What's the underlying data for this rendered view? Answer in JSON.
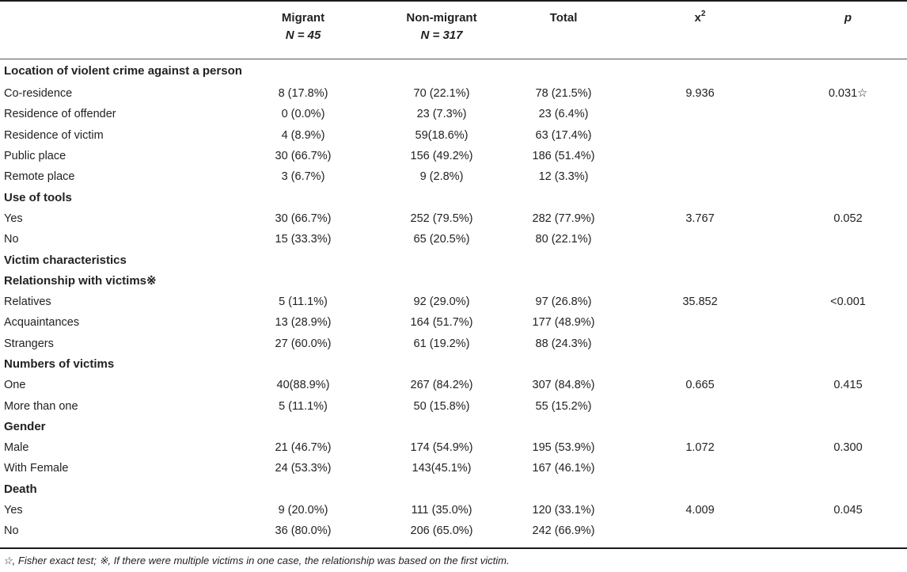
{
  "table": {
    "headers": {
      "migrant_title": "Migrant",
      "migrant_n": "N = 45",
      "nonmigrant_title": "Non-migrant",
      "nonmigrant_n": "N = 317",
      "total": "Total",
      "chi_base": "x",
      "chi_sup": "2",
      "p": "p"
    },
    "rows": [
      {
        "type": "section",
        "label": "Location of violent crime against a person"
      },
      {
        "type": "data",
        "label": "Co-residence",
        "migrant": "8 (17.8%)",
        "nonmigrant": "70 (22.1%)",
        "total": "78 (21.5%)",
        "chi": "9.936",
        "p": "0.031☆"
      },
      {
        "type": "data",
        "label": "Residence of offender",
        "migrant": "0 (0.0%)",
        "nonmigrant": "23 (7.3%)",
        "total": "23 (6.4%)",
        "chi": "",
        "p": ""
      },
      {
        "type": "data",
        "label": "Residence of victim",
        "migrant": "4 (8.9%)",
        "nonmigrant": "59(18.6%)",
        "total": "63 (17.4%)",
        "chi": "",
        "p": ""
      },
      {
        "type": "data",
        "label": "Public place",
        "migrant": "30 (66.7%)",
        "nonmigrant": "156 (49.2%)",
        "total": "186 (51.4%)",
        "chi": "",
        "p": ""
      },
      {
        "type": "data",
        "label": "Remote place",
        "migrant": "3 (6.7%)",
        "nonmigrant": "9 (2.8%)",
        "total": "12 (3.3%)",
        "chi": "",
        "p": ""
      },
      {
        "type": "section",
        "label": "Use of tools"
      },
      {
        "type": "data",
        "label": "Yes",
        "migrant": "30 (66.7%)",
        "nonmigrant": "252 (79.5%)",
        "total": "282 (77.9%)",
        "chi": "3.767",
        "p": "0.052"
      },
      {
        "type": "data",
        "label": "No",
        "migrant": "15 (33.3%)",
        "nonmigrant": "65 (20.5%)",
        "total": "80 (22.1%)",
        "chi": "",
        "p": ""
      },
      {
        "type": "section",
        "label": "Victim characteristics"
      },
      {
        "type": "section",
        "label": "Relationship with victims※"
      },
      {
        "type": "data",
        "label": "Relatives",
        "migrant": "5 (11.1%)",
        "nonmigrant": "92 (29.0%)",
        "total": "97 (26.8%)",
        "chi": "35.852",
        "p": "<0.001"
      },
      {
        "type": "data",
        "label": "Acquaintances",
        "migrant": "13 (28.9%)",
        "nonmigrant": "164 (51.7%)",
        "total": "177 (48.9%)",
        "chi": "",
        "p": ""
      },
      {
        "type": "data",
        "label": "Strangers",
        "migrant": "27 (60.0%)",
        "nonmigrant": "61 (19.2%)",
        "total": "88 (24.3%)",
        "chi": "",
        "p": ""
      },
      {
        "type": "section",
        "label": "Numbers of victims"
      },
      {
        "type": "data",
        "label": "One",
        "migrant": "40(88.9%)",
        "nonmigrant": "267 (84.2%)",
        "total": "307 (84.8%)",
        "chi": "0.665",
        "p": "0.415"
      },
      {
        "type": "data",
        "label": "More than one",
        "migrant": "5 (11.1%)",
        "nonmigrant": "50 (15.8%)",
        "total": "55 (15.2%)",
        "chi": "",
        "p": ""
      },
      {
        "type": "section",
        "label": "Gender"
      },
      {
        "type": "data",
        "label": "Male",
        "migrant": "21 (46.7%)",
        "nonmigrant": "174 (54.9%)",
        "total": "195 (53.9%)",
        "chi": "1.072",
        "p": "0.300"
      },
      {
        "type": "data",
        "label": "With Female",
        "migrant": "24 (53.3%)",
        "nonmigrant": "143(45.1%)",
        "total": "167 (46.1%)",
        "chi": "",
        "p": ""
      },
      {
        "type": "section",
        "label": "Death"
      },
      {
        "type": "data",
        "label": "Yes",
        "migrant": "9 (20.0%)",
        "nonmigrant": "111 (35.0%)",
        "total": "120 (33.1%)",
        "chi": "4.009",
        "p": "0.045"
      },
      {
        "type": "data",
        "label": "No",
        "migrant": "36 (80.0%)",
        "nonmigrant": "206 (65.0%)",
        "total": "242 (66.9%)",
        "chi": "",
        "p": ""
      }
    ]
  },
  "footnote": "☆, Fisher exact test; ※, If there were multiple victims in one case, the relationship was based on the first victim."
}
